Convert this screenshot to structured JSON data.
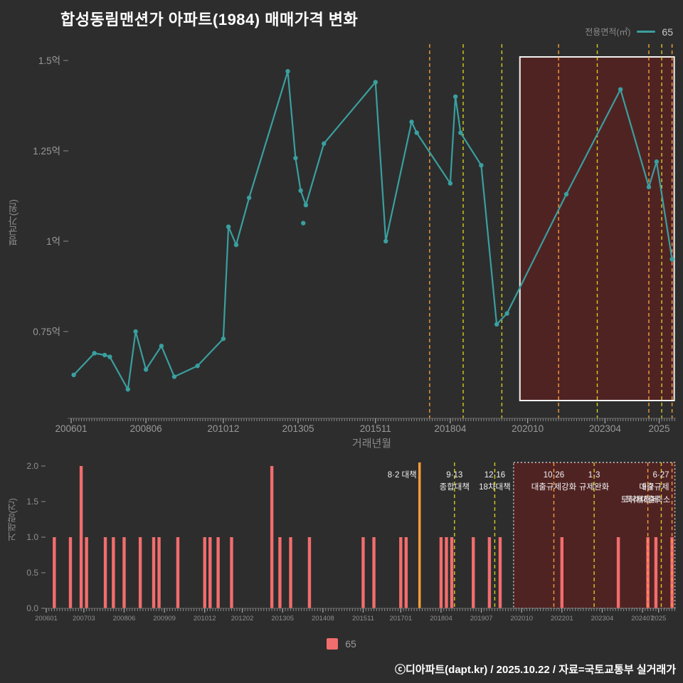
{
  "title": "합성동림맨션가 아파트(1984) 매매가격 변화",
  "legend_top": {
    "label": "전용면적(㎡)",
    "value": "65"
  },
  "legend_bottom": {
    "value": "65"
  },
  "footer": "ⓒ디아파트(dapt.kr) / 2025.10.22 / 자료=국토교통부 실거래가",
  "colors": {
    "background": "#2d2d2d",
    "line": "#3a9f9f",
    "bar": "#f26d6d",
    "yellow_line": "#ddd51f",
    "orange_line": "#ffa33a",
    "highlight_fill": "rgba(125,25,25,0.45)",
    "highlight_border_main": "#f2f2f2",
    "highlight_border_volume": "#cfcfcf",
    "axis_text": "#999999",
    "annotation_text": "#f0f0f0"
  },
  "chart_data": [
    {
      "type": "line",
      "name": "price-trend",
      "ylabel": "평균가(원)",
      "xlabel": "거래년월",
      "ylim": [
        0.55,
        1.55
      ],
      "yticks": [
        {
          "label": "1.5억",
          "value": 1.5
        },
        {
          "label": "1.25억",
          "value": 1.25
        },
        {
          "label": "1억",
          "value": 1.0
        },
        {
          "label": "0.75억",
          "value": 0.75
        }
      ],
      "xticks": [
        "200601",
        "200806",
        "201012",
        "201305",
        "201511",
        "201804",
        "202010",
        "202304",
        "2025"
      ],
      "highlight_region": {
        "from": "202007",
        "to": "202506"
      },
      "isolated_points": [
        [
          "201307",
          1.05
        ]
      ],
      "series": [
        {
          "name": "65",
          "color": "#3a9f9f",
          "points": [
            [
              "200602",
              0.63
            ],
            [
              "200610",
              0.69
            ],
            [
              "200702",
              0.685
            ],
            [
              "200704",
              0.68
            ],
            [
              "200711",
              0.59
            ],
            [
              "200802",
              0.75
            ],
            [
              "200806",
              0.645
            ],
            [
              "200812",
              0.71
            ],
            [
              "200905",
              0.625
            ],
            [
              "201002",
              0.655
            ],
            [
              "201012",
              0.73
            ],
            [
              "201102",
              1.04
            ],
            [
              "201105",
              0.99
            ],
            [
              "201110",
              1.12
            ],
            [
              "201301",
              1.47
            ],
            [
              "201304",
              1.23
            ],
            [
              "201306",
              1.14
            ],
            [
              "201308",
              1.1
            ],
            [
              "201403",
              1.27
            ],
            [
              "201511",
              1.44
            ],
            [
              "201603",
              1.0
            ],
            [
              "201701",
              1.33
            ],
            [
              "201703",
              1.3
            ],
            [
              "201804",
              1.16
            ],
            [
              "201806",
              1.4
            ],
            [
              "201808",
              1.3
            ],
            [
              "201904",
              1.21
            ],
            [
              "201910",
              0.77
            ],
            [
              "202002",
              0.8
            ],
            [
              "202201",
              1.13
            ],
            [
              "202310",
              1.42
            ],
            [
              "202409",
              1.15
            ],
            [
              "202412",
              1.22
            ],
            [
              "202506",
              0.95
            ]
          ]
        }
      ]
    },
    {
      "type": "bar",
      "name": "transaction-volume",
      "ylabel": "거래량(건)",
      "ylim": [
        0,
        2
      ],
      "yticks": [
        {
          "label": "0.0",
          "value": 0
        },
        {
          "label": "0.5",
          "value": 0.5
        },
        {
          "label": "1.0",
          "value": 1
        },
        {
          "label": "1.5",
          "value": 1.5
        },
        {
          "label": "2.0",
          "value": 2
        }
      ],
      "xticks": [
        "200601",
        "200703",
        "200806",
        "200909",
        "201012",
        "201202",
        "201305",
        "201408",
        "201511",
        "201701",
        "201804",
        "201907",
        "202010",
        "202201",
        "202304",
        "202407",
        "2025"
      ],
      "highlight_region": {
        "from": "202007",
        "to": "202506"
      },
      "series": [
        {
          "name": "65",
          "color": "#f26d6d",
          "bars": [
            [
              "200604",
              1
            ],
            [
              "200610",
              1
            ],
            [
              "200702",
              2
            ],
            [
              "200704",
              1
            ],
            [
              "200711",
              1
            ],
            [
              "200802",
              1
            ],
            [
              "200806",
              1
            ],
            [
              "200812",
              1
            ],
            [
              "200905",
              1
            ],
            [
              "200907",
              1
            ],
            [
              "201002",
              1
            ],
            [
              "201012",
              1
            ],
            [
              "201102",
              1
            ],
            [
              "201105",
              1
            ],
            [
              "201110",
              1
            ],
            [
              "201301",
              2
            ],
            [
              "201304",
              1
            ],
            [
              "201308",
              1
            ],
            [
              "201403",
              1
            ],
            [
              "201511",
              1
            ],
            [
              "201603",
              1
            ],
            [
              "201701",
              1
            ],
            [
              "201703",
              1
            ],
            [
              "201804",
              1
            ],
            [
              "201806",
              1
            ],
            [
              "201808",
              1
            ],
            [
              "201904",
              1
            ],
            [
              "201910",
              1
            ],
            [
              "202002",
              1
            ],
            [
              "202201",
              1
            ],
            [
              "202310",
              1
            ],
            [
              "202409",
              1
            ],
            [
              "202412",
              1
            ],
            [
              "202506",
              1
            ]
          ]
        }
      ]
    }
  ],
  "policy_lines": [
    {
      "date": "201708",
      "line1": "8·2 대책",
      "line2": "",
      "color": "#ffa33a",
      "solid_in_volume": true,
      "label_align": "end",
      "label_row": 1
    },
    {
      "date": "201809",
      "line1": "9·13",
      "line2": "종합대책",
      "color": "#ddd51f",
      "label_row": 1
    },
    {
      "date": "201912",
      "line1": "12·16",
      "line2": "18차대책",
      "color": "#ddd51f",
      "label_row": 1
    },
    {
      "date": "202110",
      "line1": "10·26",
      "line2": "대출규제강화",
      "color": "#ffa33a",
      "label_row": 1
    },
    {
      "date": "202301",
      "line1": "1·3",
      "line2": "규제완화",
      "color": "#ddd51f",
      "label_row": 1
    },
    {
      "date": "202409",
      "line1": "9·7",
      "line2": "특례대출축소",
      "color": "#ffa33a",
      "label_row": 2
    },
    {
      "date": "202502",
      "line1": "",
      "line2": "토허제해제",
      "color": "#ddd51f",
      "label_align": "end",
      "label_row": 2
    },
    {
      "date": "202506",
      "line1": "6·27",
      "line2": "대출규제",
      "color": "#ffa33a",
      "label_align": "end",
      "label_row": 1
    }
  ]
}
